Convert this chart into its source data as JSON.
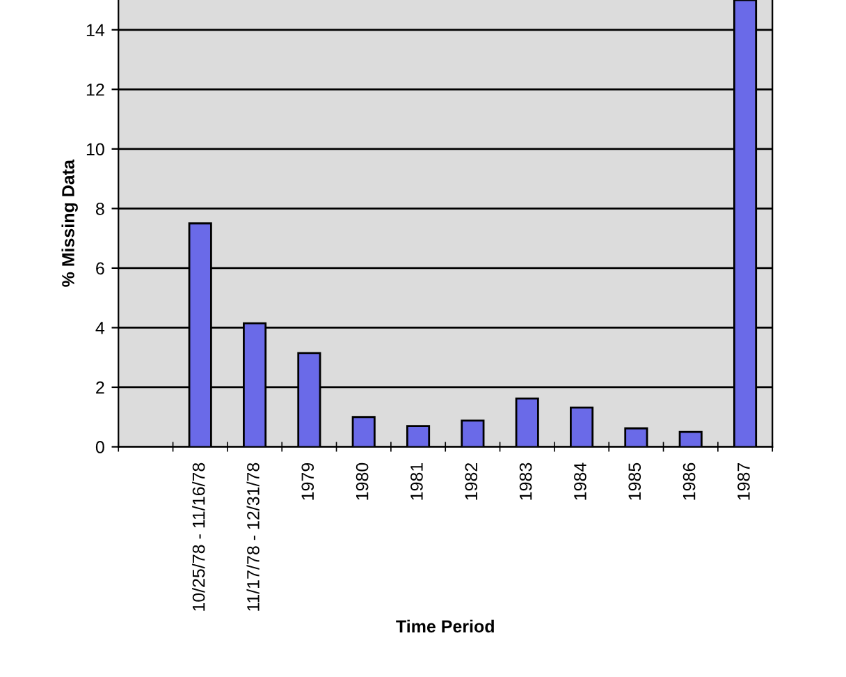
{
  "chart_data": {
    "type": "bar",
    "xlabel": "Time Period",
    "ylabel": "% Missing Data",
    "categories": [
      null,
      "10/25/78 - 11/16/78",
      "11/17/78 - 12/31/78",
      "1979",
      "1980",
      "1981",
      "1982",
      "1983",
      "1984",
      "1985",
      "1986",
      "1987"
    ],
    "values": [
      null,
      7.5,
      4.15,
      3.15,
      1.0,
      0.7,
      0.88,
      1.62,
      1.32,
      0.62,
      0.5,
      15
    ],
    "color": "#6a6ae8",
    "ylim": [
      0,
      15
    ],
    "yticks": [
      0,
      2,
      4,
      6,
      8,
      10,
      12,
      14
    ],
    "grid": "y",
    "legend": false
  }
}
